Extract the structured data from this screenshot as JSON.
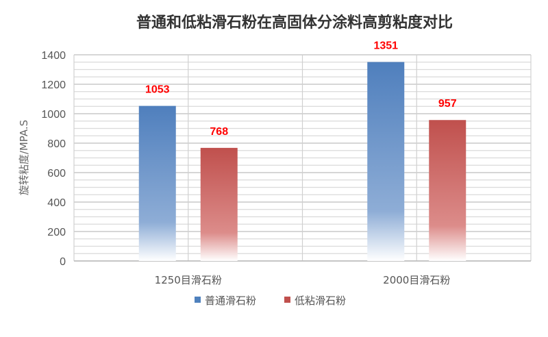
{
  "chart_data": {
    "type": "bar",
    "title": "普通和低粘滑石粉在高固体分涂料高剪粘度对比",
    "ylabel": "旋转粘度/MPA.S",
    "xlabel": "",
    "categories": [
      "1250目滑石粉",
      "2000目滑石粉"
    ],
    "series": [
      {
        "name": "普通滑石粉",
        "values": [
          1053,
          1351
        ],
        "color": "#4f81bd"
      },
      {
        "name": "低粘滑石粉",
        "values": [
          768,
          957
        ],
        "color": "#c0504d"
      }
    ],
    "ylim": [
      0,
      1400
    ],
    "yticks": [
      "0",
      "200",
      "400",
      "600",
      "800",
      "1000",
      "1200",
      "1400"
    ],
    "data_labels": [
      "1053",
      "1351",
      "768",
      "957"
    ],
    "grid": true,
    "legend": "bottom",
    "label_color": "#ff0000"
  }
}
